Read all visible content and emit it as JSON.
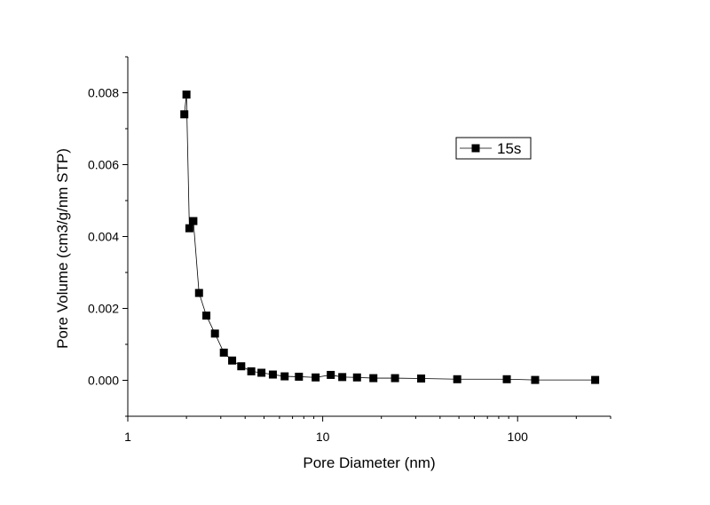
{
  "chart_data": {
    "type": "scatter",
    "title": "",
    "xlabel": "Pore Diameter (nm)",
    "ylabel": "Pore Volume (cm3/g/nm STP)",
    "xscale": "log",
    "xlim": [
      1,
      300
    ],
    "ylim": [
      -0.001,
      0.009
    ],
    "x_ticks": [
      1,
      10,
      100
    ],
    "x_tick_labels": [
      "1",
      "10",
      "100"
    ],
    "y_ticks": [
      0,
      0.002,
      0.004,
      0.006,
      0.008
    ],
    "y_tick_labels": [
      "0.000",
      "0.002",
      "0.004",
      "0.006",
      "0.008"
    ],
    "grid": false,
    "legend_position": "upper-right",
    "series": [
      {
        "name": "15s",
        "marker": "square",
        "connected": true,
        "color": "#000000",
        "x": [
          1.95,
          2.0,
          2.07,
          2.17,
          2.32,
          2.53,
          2.8,
          3.11,
          3.43,
          3.82,
          4.3,
          4.85,
          5.55,
          6.38,
          7.55,
          9.2,
          11.0,
          12.6,
          15.0,
          18.2,
          23.5,
          32.0,
          49.0,
          88.0,
          123.0,
          250.0
        ],
        "y": [
          0.0074,
          0.00795,
          0.00423,
          0.00443,
          0.00243,
          0.0018,
          0.0013,
          0.00077,
          0.00055,
          0.00039,
          0.00025,
          0.00021,
          0.00016,
          0.00011,
          0.0001,
          8e-05,
          0.00015,
          9e-05,
          8e-05,
          6e-05,
          6e-05,
          5e-05,
          3e-05,
          3e-05,
          1e-05,
          1e-05
        ]
      }
    ]
  }
}
